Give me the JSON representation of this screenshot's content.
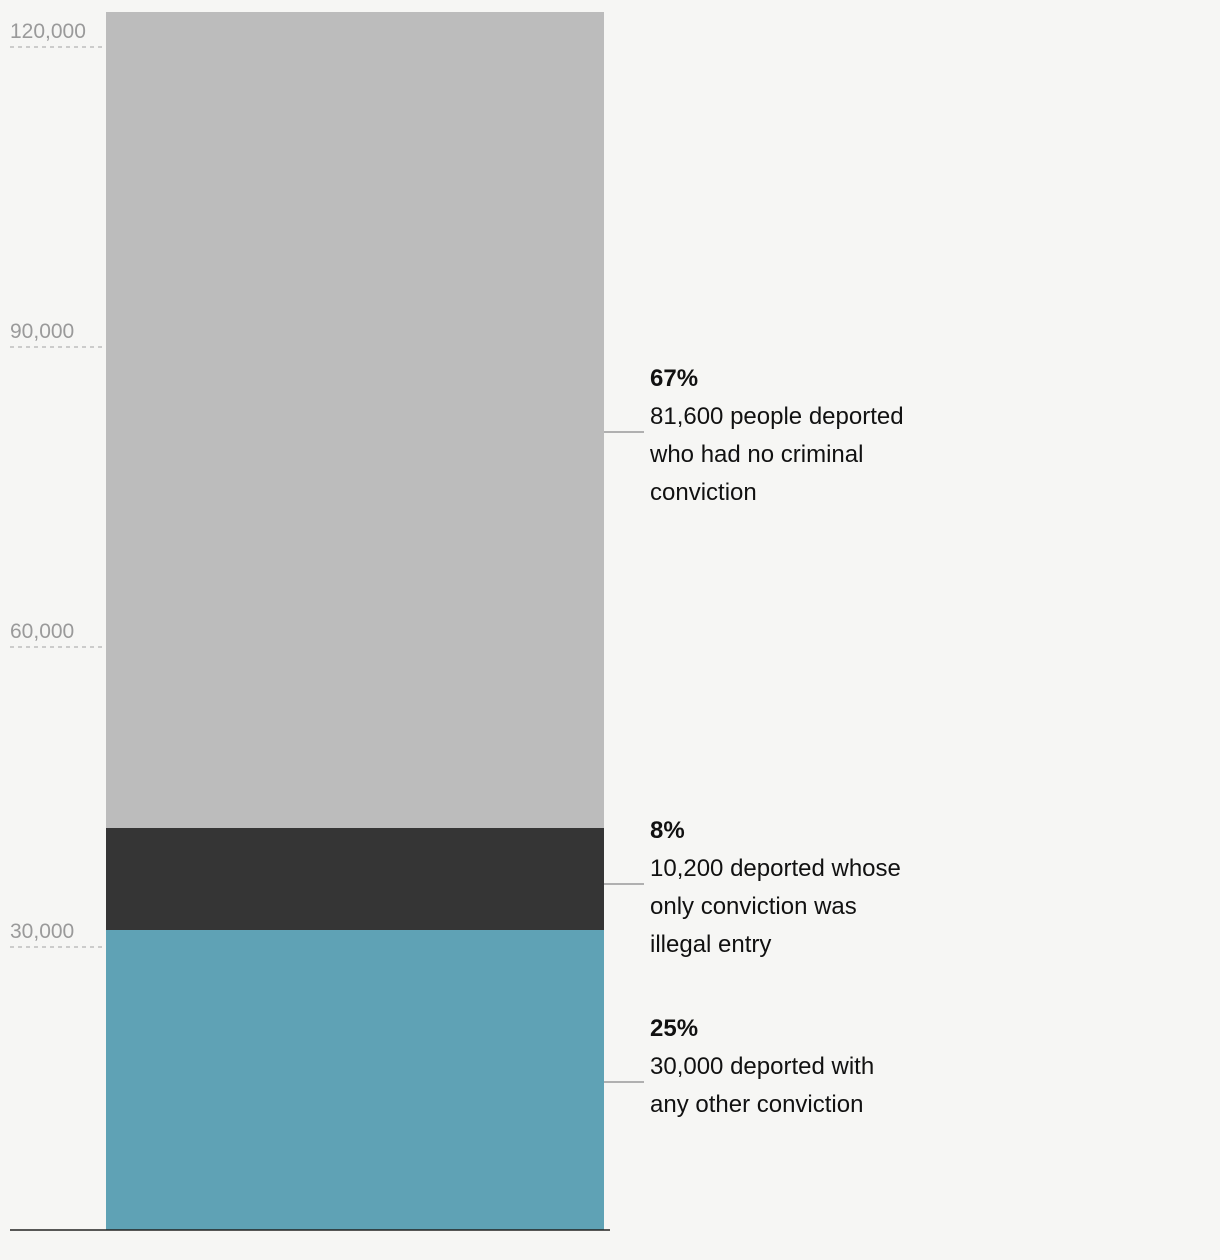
{
  "chart_data": {
    "type": "bar",
    "stacked": true,
    "ylim": [
      0,
      120000
    ],
    "yticks": [
      {
        "value": 30000,
        "label": "30,000"
      },
      {
        "value": 60000,
        "label": "60,000"
      },
      {
        "value": 90000,
        "label": "90,000"
      },
      {
        "value": 120000,
        "label": "120,000"
      }
    ],
    "grid": false,
    "segments": [
      {
        "value": 30000,
        "color": "#5fa2b5",
        "percent_label": "25%",
        "description_lines": [
          "30,000 deported with",
          "any other conviction"
        ]
      },
      {
        "value": 10200,
        "color": "#353535",
        "percent_label": "8%",
        "description_lines": [
          "10,200 deported whose",
          "only conviction was",
          "illegal entry"
        ]
      },
      {
        "value": 81600,
        "color": "#bcbcbc",
        "percent_label": "67%",
        "description_lines": [
          "81,600 people deported",
          "who had no criminal",
          "conviction"
        ]
      }
    ]
  }
}
